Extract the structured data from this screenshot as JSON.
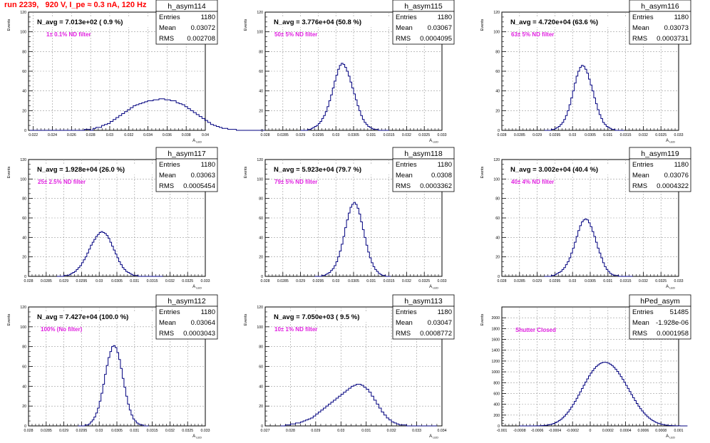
{
  "page_title": "run 2239,   920 V, I_pe ≈ 0.3 nA, 120 Hz",
  "chart_data": [
    {
      "type": "histogram",
      "hist_name": "h_asym114",
      "navg_label": "N_avg = 7.013e+02 ( 0.9 %)",
      "filter_label": "1± 0.1% ND filter",
      "stats": {
        "Entries": "1180",
        "Mean": "0.03072",
        "RMS": "0.002708"
      },
      "xlabel": "A_LED",
      "ylabel": "Events",
      "xlim": [
        0.0215,
        0.04
      ],
      "ylim": [
        0,
        120
      ],
      "xticks": [
        0.022,
        0.024,
        0.026,
        0.028,
        0.03,
        0.032,
        0.034,
        0.036,
        0.038,
        0.04
      ],
      "xtick_labels": [
        "0.022",
        "0.024",
        "0.026",
        "0.028",
        "0.03",
        "0.032",
        "0.034",
        "0.036",
        "0.038",
        "0.04"
      ],
      "yticks": [
        0,
        20,
        40,
        60,
        80,
        100,
        120
      ],
      "bins": {
        "start": 0.02165,
        "width": 0.0003,
        "counts": [
          0,
          0,
          0,
          0,
          0,
          0,
          0,
          0,
          0,
          0,
          0,
          0,
          0,
          0,
          0,
          0,
          0,
          0,
          0,
          1,
          1,
          0,
          2,
          3,
          3,
          5,
          6,
          7,
          9,
          11,
          13,
          15,
          17,
          19,
          21,
          23,
          25,
          26,
          27,
          28,
          29,
          30,
          30,
          31,
          31,
          32,
          32,
          31,
          31,
          30,
          30,
          28,
          27,
          26,
          24,
          22,
          20,
          18,
          16,
          14,
          12,
          10,
          8,
          6,
          5,
          4,
          3,
          2,
          2,
          1,
          1,
          1,
          0,
          0,
          0,
          0,
          0,
          0,
          0,
          0,
          0,
          0,
          0,
          0,
          0,
          0,
          0,
          0,
          0,
          0,
          0,
          0,
          0,
          0
        ]
      }
    },
    {
      "type": "histogram",
      "hist_name": "h_asym115",
      "navg_label": "N_avg = 3.776e+04 (50.8 %)",
      "filter_label": "50± 5% ND filter",
      "stats": {
        "Entries": "1180",
        "Mean": "0.03067",
        "RMS": "0.0004095"
      },
      "xlabel": "A_LED",
      "ylabel": "Events",
      "xlim": [
        0.028,
        0.033
      ],
      "ylim": [
        0,
        120
      ],
      "xticks": [
        0.028,
        0.0285,
        0.029,
        0.0295,
        0.03,
        0.0305,
        0.031,
        0.0315,
        0.032,
        0.0325,
        0.033
      ],
      "xtick_labels": [
        "0.028",
        "0.0285",
        "0.029",
        "0.0295",
        "0.03",
        "0.0305",
        "0.031",
        "0.0315",
        "0.032",
        "0.0325",
        "0.033"
      ],
      "yticks": [
        0,
        20,
        40,
        60,
        80,
        100,
        120
      ],
      "bins": {
        "start": 0.029,
        "width": 5e-05,
        "counts": [
          0,
          0,
          0,
          0,
          1,
          1,
          2,
          3,
          4,
          5,
          7,
          9,
          12,
          15,
          19,
          24,
          30,
          36,
          43,
          50,
          56,
          62,
          66,
          68,
          67,
          64,
          60,
          55,
          49,
          43,
          37,
          31,
          25,
          20,
          15,
          11,
          8,
          6,
          4,
          3,
          2,
          1,
          1,
          1,
          0,
          0,
          0,
          0,
          0,
          0
        ]
      }
    },
    {
      "type": "histogram",
      "hist_name": "h_asym116",
      "navg_label": "N_avg = 4.720e+04 (63.6 %)",
      "filter_label": "63± 5% ND filter",
      "stats": {
        "Entries": "1180",
        "Mean": "0.03073",
        "RMS": "0.0003731"
      },
      "xlabel": "A_LED",
      "ylabel": "Events",
      "xlim": [
        0.028,
        0.033
      ],
      "ylim": [
        0,
        120
      ],
      "xticks": [
        0.028,
        0.0285,
        0.029,
        0.0295,
        0.03,
        0.0305,
        0.031,
        0.0315,
        0.032,
        0.0325,
        0.033
      ],
      "xtick_labels": [
        "0.028",
        "0.0285",
        "0.029",
        "0.0295",
        "0.03",
        "0.0305",
        "0.031",
        "0.0315",
        "0.032",
        "0.0325",
        "0.033"
      ],
      "yticks": [
        0,
        20,
        40,
        60,
        80,
        100,
        120
      ],
      "bins": {
        "start": 0.0292,
        "width": 5e-05,
        "counts": [
          0,
          0,
          0,
          0,
          1,
          1,
          2,
          3,
          4,
          6,
          8,
          11,
          15,
          20,
          26,
          33,
          40,
          48,
          55,
          60,
          64,
          66,
          65,
          62,
          58,
          52,
          46,
          40,
          33,
          27,
          21,
          16,
          12,
          8,
          6,
          4,
          3,
          2,
          1,
          1,
          0,
          0,
          0,
          0,
          0
        ]
      }
    },
    {
      "type": "histogram",
      "hist_name": "h_asym117",
      "navg_label": "N_avg = 1.928e+04 (26.0 %)",
      "filter_label": "25± 2.5% ND filter",
      "stats": {
        "Entries": "1180",
        "Mean": "0.03063",
        "RMS": "0.0005454"
      },
      "xlabel": "A_LED",
      "ylabel": "Events",
      "xlim": [
        0.028,
        0.033
      ],
      "ylim": [
        0,
        120
      ],
      "xticks": [
        0.028,
        0.0285,
        0.029,
        0.0295,
        0.03,
        0.0305,
        0.031,
        0.0315,
        0.032,
        0.0325,
        0.033
      ],
      "xtick_labels": [
        "0.028",
        "0.0285",
        "0.029",
        "0.0295",
        "0.03",
        "0.0305",
        "0.031",
        "0.0315",
        "0.032",
        "0.0325",
        "0.033"
      ],
      "yticks": [
        0,
        20,
        40,
        60,
        80,
        100,
        120
      ],
      "bins": {
        "start": 0.0288,
        "width": 5e-05,
        "counts": [
          0,
          0,
          0,
          0,
          1,
          1,
          1,
          2,
          3,
          4,
          5,
          7,
          9,
          11,
          14,
          17,
          20,
          24,
          28,
          32,
          35,
          38,
          41,
          43,
          45,
          46,
          45,
          44,
          42,
          39,
          35,
          31,
          27,
          23,
          19,
          15,
          12,
          9,
          7,
          5,
          4,
          3,
          2,
          1,
          1,
          1,
          0,
          0,
          0,
          0,
          0,
          0,
          0,
          0,
          0,
          0,
          0,
          0,
          0,
          0
        ]
      }
    },
    {
      "type": "histogram",
      "hist_name": "h_asym118",
      "navg_label": "N_avg = 5.923e+04 (79.7 %)",
      "filter_label": "79± 5% ND filter",
      "stats": {
        "Entries": "1180",
        "Mean": "0.0308",
        "RMS": "0.0003362"
      },
      "xlabel": "A_LED",
      "ylabel": "Events",
      "xlim": [
        0.028,
        0.033
      ],
      "ylim": [
        0,
        120
      ],
      "xticks": [
        0.028,
        0.0285,
        0.029,
        0.0295,
        0.03,
        0.0305,
        0.031,
        0.0315,
        0.032,
        0.0325,
        0.033
      ],
      "xtick_labels": [
        "0.028",
        "0.0285",
        "0.029",
        "0.0295",
        "0.03",
        "0.0305",
        "0.031",
        "0.0315",
        "0.032",
        "0.0325",
        "0.033"
      ],
      "yticks": [
        0,
        20,
        40,
        60,
        80,
        100,
        120
      ],
      "bins": {
        "start": 0.0294,
        "width": 5e-05,
        "counts": [
          0,
          0,
          0,
          0,
          1,
          1,
          2,
          3,
          4,
          6,
          8,
          11,
          15,
          20,
          26,
          33,
          41,
          50,
          58,
          65,
          71,
          74,
          76,
          74,
          70,
          64,
          56,
          48,
          40,
          32,
          25,
          19,
          14,
          10,
          7,
          5,
          3,
          2,
          1,
          1,
          0,
          0,
          0
        ]
      }
    },
    {
      "type": "histogram",
      "hist_name": "h_asym119",
      "navg_label": "N_avg = 3.002e+04 (40.4 %)",
      "filter_label": "40± 4% ND filter",
      "stats": {
        "Entries": "1180",
        "Mean": "0.03076",
        "RMS": "0.0004322"
      },
      "xlabel": "A_LED",
      "ylabel": "Events",
      "xlim": [
        0.028,
        0.033
      ],
      "ylim": [
        0,
        120
      ],
      "xticks": [
        0.028,
        0.0285,
        0.029,
        0.0295,
        0.03,
        0.0305,
        0.031,
        0.0315,
        0.032,
        0.0325,
        0.033
      ],
      "xtick_labels": [
        "0.028",
        "0.0285",
        "0.029",
        "0.0295",
        "0.03",
        "0.0305",
        "0.031",
        "0.0315",
        "0.032",
        "0.0325",
        "0.033"
      ],
      "yticks": [
        0,
        20,
        40,
        60,
        80,
        100,
        120
      ],
      "bins": {
        "start": 0.0292,
        "width": 5e-05,
        "counts": [
          0,
          0,
          0,
          0,
          1,
          1,
          2,
          3,
          4,
          5,
          7,
          9,
          12,
          15,
          19,
          24,
          29,
          35,
          41,
          47,
          52,
          56,
          58,
          59,
          58,
          55,
          51,
          46,
          41,
          35,
          29,
          24,
          19,
          14,
          10,
          7,
          5,
          3,
          2,
          1,
          1,
          1,
          0,
          0,
          0,
          0,
          0,
          0,
          0,
          0
        ]
      }
    },
    {
      "type": "histogram",
      "hist_name": "h_asym112",
      "navg_label": "N_avg = 7.427e+04 (100.0 %)",
      "filter_label": "100% (No filter)",
      "stats": {
        "Entries": "1180",
        "Mean": "0.03064",
        "RMS": "0.0003043"
      },
      "xlabel": "A_LED",
      "ylabel": "Events",
      "xlim": [
        0.028,
        0.033
      ],
      "ylim": [
        0,
        120
      ],
      "xticks": [
        0.028,
        0.0285,
        0.029,
        0.0295,
        0.03,
        0.0305,
        0.031,
        0.0315,
        0.032,
        0.0325,
        0.033
      ],
      "xtick_labels": [
        "0.028",
        "0.0285",
        "0.029",
        "0.0295",
        "0.03",
        "0.0305",
        "0.031",
        "0.0315",
        "0.032",
        "0.0325",
        "0.033"
      ],
      "yticks": [
        0,
        20,
        40,
        60,
        80,
        100,
        120
      ],
      "bins": {
        "start": 0.0294,
        "width": 5e-05,
        "counts": [
          0,
          0,
          0,
          0,
          1,
          1,
          2,
          4,
          6,
          9,
          13,
          18,
          25,
          33,
          42,
          52,
          61,
          69,
          75,
          80,
          81,
          79,
          74,
          67,
          58,
          48,
          39,
          30,
          22,
          16,
          11,
          7,
          5,
          3,
          2,
          1,
          1,
          0,
          0,
          0
        ]
      }
    },
    {
      "type": "histogram",
      "hist_name": "h_asym113",
      "navg_label": "N_avg = 7.050e+03 ( 9.5 %)",
      "filter_label": "10± 1% ND filter",
      "stats": {
        "Entries": "1180",
        "Mean": "0.03047",
        "RMS": "0.0008772"
      },
      "xlabel": "A_LED",
      "ylabel": "Events",
      "xlim": [
        0.027,
        0.034
      ],
      "ylim": [
        0,
        120
      ],
      "xticks": [
        0.027,
        0.028,
        0.029,
        0.03,
        0.031,
        0.032,
        0.033,
        0.034
      ],
      "xtick_labels": [
        "0.027",
        "0.028",
        "0.029",
        "0.03",
        "0.031",
        "0.032",
        "0.033",
        "0.034"
      ],
      "yticks": [
        0,
        20,
        40,
        60,
        80,
        100,
        120
      ],
      "bins": {
        "start": 0.0276,
        "width": 0.0001,
        "counts": [
          0,
          0,
          1,
          1,
          2,
          2,
          3,
          3,
          4,
          5,
          6,
          7,
          8,
          10,
          12,
          14,
          16,
          18,
          20,
          22,
          24,
          26,
          28,
          30,
          32,
          34,
          36,
          38,
          40,
          41,
          42,
          42,
          41,
          39,
          37,
          34,
          30,
          26,
          22,
          18,
          14,
          11,
          8,
          6,
          4,
          3,
          2,
          1,
          1,
          1,
          0,
          0,
          0,
          0,
          0,
          0,
          0,
          0,
          0,
          0,
          0,
          0
        ]
      }
    },
    {
      "type": "histogram",
      "hist_name": "hPed_asym",
      "navg_label": "",
      "filter_label": "Shutter Closed",
      "stats": {
        "Entries": "51485",
        "Mean": "-1.928e-06",
        "RMS": "0.0001958"
      },
      "xlabel": "A_LED",
      "ylabel": "Events",
      "xlim": [
        -0.001,
        0.001
      ],
      "ylim": [
        0,
        2200
      ],
      "xticks": [
        -0.001,
        -0.0008,
        -0.0006,
        -0.0004,
        -0.0002,
        0,
        0.0002,
        0.0004,
        0.0006,
        0.0008,
        0.001
      ],
      "xtick_labels": [
        "-0.001",
        "-0.0008",
        "-0.0006",
        "-0.0004",
        "-0.0002",
        "0",
        "0.0002",
        "0.0004",
        "0.0006",
        "0.0008",
        "0.001"
      ],
      "yticks": [
        0,
        200,
        400,
        600,
        800,
        1000,
        1200,
        1400,
        1600,
        1800,
        2000
      ],
      "bins": {
        "start": -0.0008,
        "width": 2e-05,
        "counts": [
          0,
          0,
          0,
          0,
          0,
          0,
          0,
          0,
          0,
          1,
          2,
          3,
          5,
          7,
          10,
          14,
          19,
          26,
          35,
          46,
          60,
          77,
          97,
          121,
          149,
          181,
          217,
          257,
          301,
          349,
          400,
          454,
          511,
          570,
          630,
          691,
          752,
          812,
          870,
          925,
          976,
          1022,
          1063,
          1098,
          1127,
          1150,
          1166,
          1175,
          1177,
          1172,
          1160,
          1141,
          1116,
          1085,
          1049,
          1008,
          962,
          913,
          861,
          806,
          750,
          693,
          635,
          578,
          522,
          467,
          415,
          366,
          320,
          277,
          238,
          203,
          171,
          143,
          118,
          97,
          79,
          63,
          50,
          39,
          30,
          23,
          17,
          13,
          9,
          7,
          5,
          3,
          2,
          1,
          1,
          0,
          0,
          0,
          0
        ]
      }
    }
  ]
}
